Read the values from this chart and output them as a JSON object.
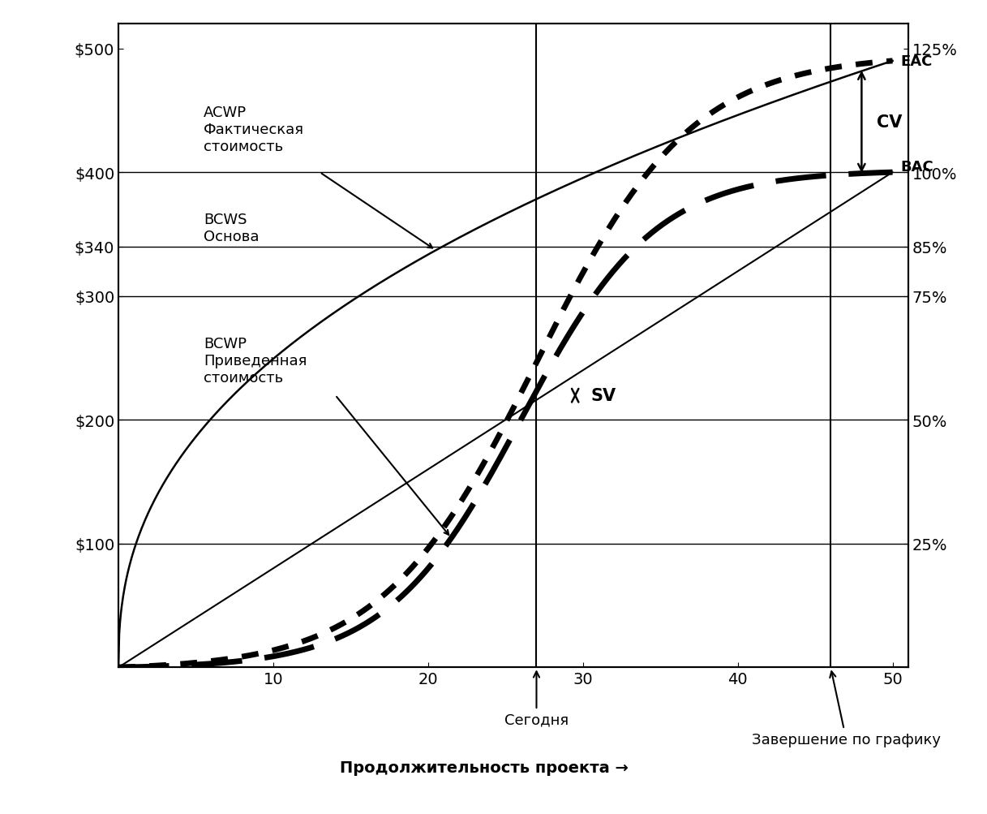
{
  "xlim": [
    0,
    51
  ],
  "ylim": [
    0,
    520
  ],
  "ylim_display": [
    0,
    500
  ],
  "xticks": [
    10,
    20,
    30,
    40,
    50
  ],
  "yticks_left_vals": [
    0,
    100,
    200,
    300,
    340,
    400,
    500
  ],
  "ytick_labels_left": [
    "",
    "$100",
    "$200",
    "$300",
    "$340",
    "$400",
    "$500"
  ],
  "yticks_right_vals": [
    0,
    100,
    200,
    300,
    340,
    400,
    500
  ],
  "ytick_labels_right": [
    "",
    "25%",
    "50%",
    "75%",
    "85%",
    "100%",
    "125%"
  ],
  "hlines": [
    100,
    200,
    300,
    340,
    400
  ],
  "today_x": 27,
  "schedule_end_x": 46,
  "BAC": 400,
  "EAC_val": 490,
  "acwp_label": "ACWP\nФактическая\nстоимость",
  "bcws_label": "BCWS\nОснова",
  "bcwp_label": "BCWP\nПриведенная\nстоимость",
  "today_label": "Сегодня",
  "schedule_label": "Завершение по графику",
  "xlabel": "Продолжительность проекта →",
  "background_color": "#ffffff"
}
